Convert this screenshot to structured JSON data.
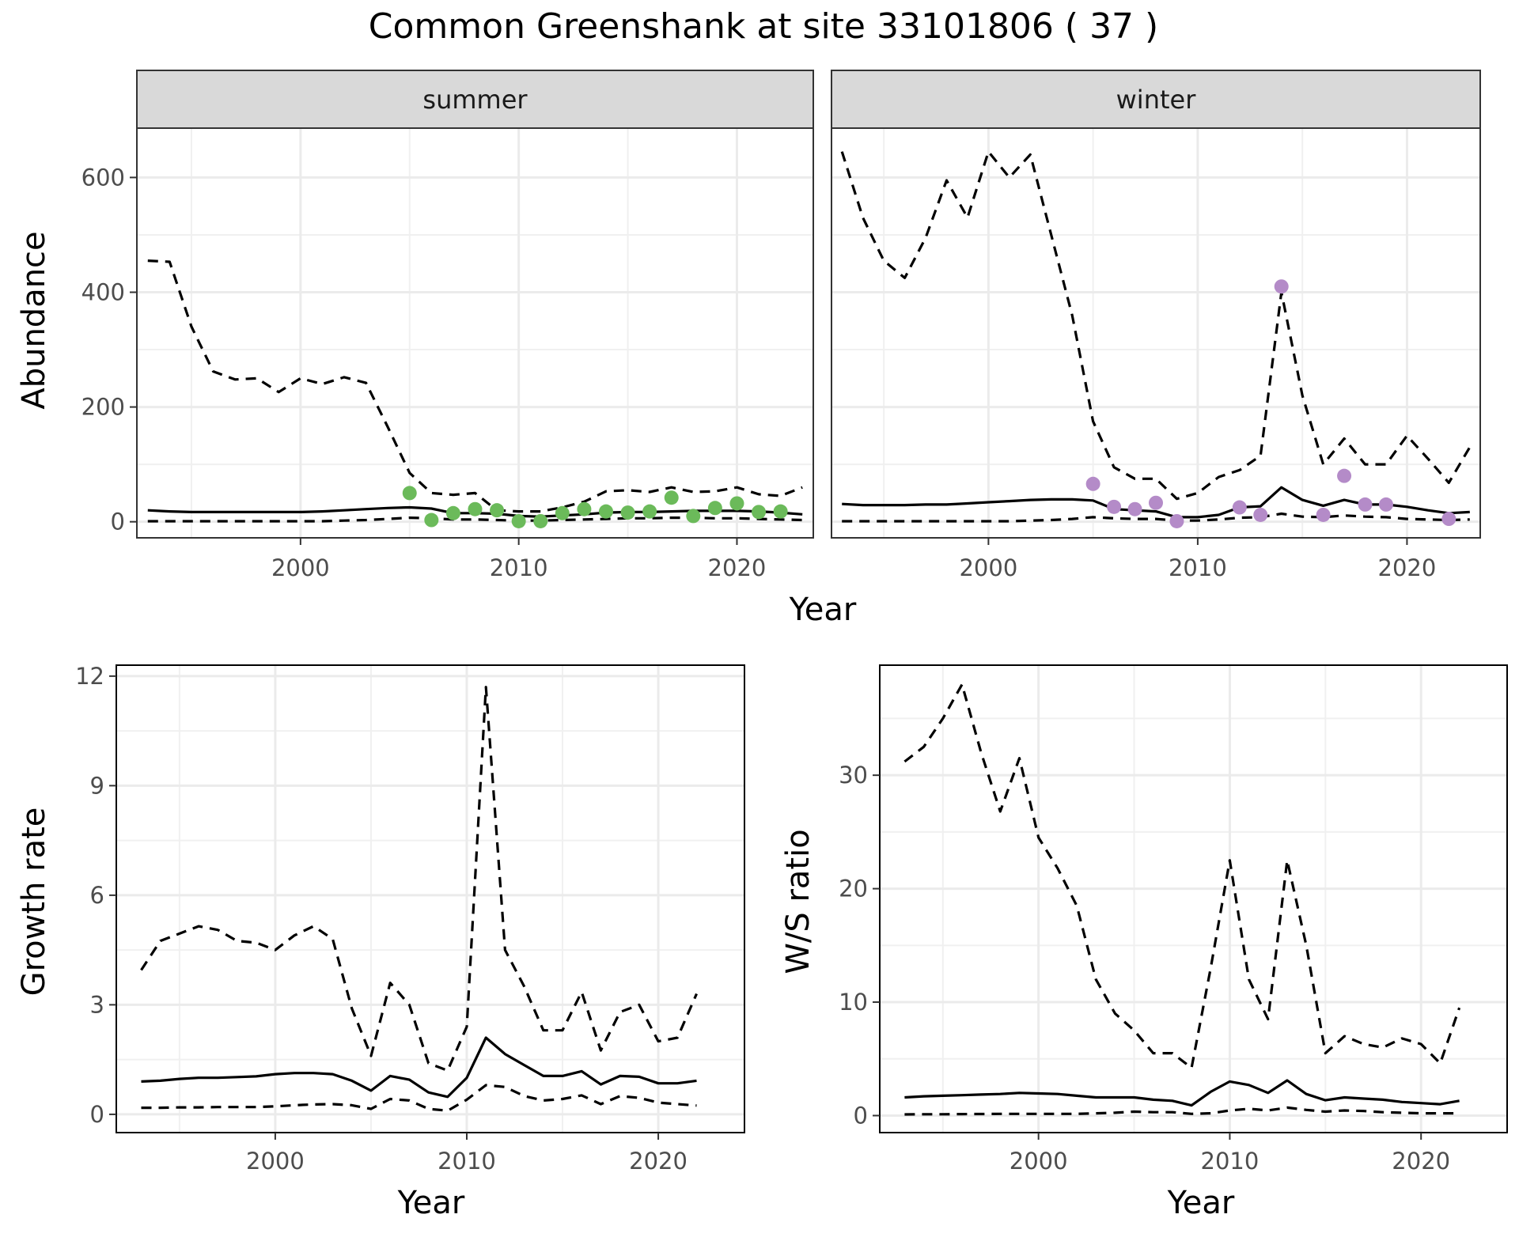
{
  "title": "Common Greenshank at site 33101806 ( 37 )",
  "colors": {
    "summer_points": "#6BBA5A",
    "winter_points": "#B48BC8",
    "lines": "#000000"
  },
  "chart_data": [
    {
      "type": "line",
      "panel": "summer",
      "strip": "summer",
      "xlabel": "Year",
      "ylabel": "Abundance",
      "xlim": [
        1992.5,
        2023.5
      ],
      "ylim": [
        -28,
        686
      ],
      "xticks": [
        2000,
        2010,
        2020
      ],
      "yticks": [
        0,
        200,
        400,
        600
      ],
      "grid": true,
      "series": [
        {
          "style": "solid",
          "x": [
            1993,
            1994,
            1995,
            1996,
            1997,
            1998,
            1999,
            2000,
            2001,
            2002,
            2003,
            2004,
            2005,
            2006,
            2007,
            2008,
            2009,
            2010,
            2011,
            2012,
            2013,
            2014,
            2015,
            2016,
            2017,
            2018,
            2019,
            2020,
            2021,
            2022,
            2023
          ],
          "y": [
            20,
            18,
            17,
            17,
            17,
            17,
            17,
            17,
            18,
            20,
            22,
            24,
            25,
            23,
            15,
            15,
            14,
            10,
            9,
            11,
            13,
            16,
            17,
            17,
            18,
            19,
            19,
            19,
            18,
            16,
            13
          ]
        },
        {
          "style": "dashed",
          "x": [
            1993,
            1994,
            1995,
            1996,
            1997,
            1998,
            1999,
            2000,
            2001,
            2002,
            2003,
            2004,
            2005,
            2006,
            2007,
            2008,
            2009,
            2010,
            2011,
            2012,
            2013,
            2014,
            2015,
            2016,
            2017,
            2018,
            2019,
            2020,
            2021,
            2022,
            2023
          ],
          "y": [
            455,
            453,
            340,
            262,
            248,
            250,
            226,
            250,
            240,
            252,
            242,
            165,
            85,
            50,
            47,
            50,
            20,
            18,
            18,
            25,
            35,
            53,
            55,
            52,
            60,
            52,
            53,
            60,
            48,
            45,
            60
          ]
        },
        {
          "style": "dashed",
          "x": [
            1993,
            1994,
            1995,
            1996,
            1997,
            1998,
            1999,
            2000,
            2001,
            2002,
            2003,
            2004,
            2005,
            2006,
            2007,
            2008,
            2009,
            2010,
            2011,
            2012,
            2013,
            2014,
            2015,
            2016,
            2017,
            2018,
            2019,
            2020,
            2021,
            2022,
            2023
          ],
          "y": [
            1,
            1,
            1,
            1,
            1,
            1,
            1,
            1,
            1,
            2,
            3,
            5,
            7,
            6,
            4,
            4,
            3,
            2,
            2,
            3,
            4,
            5,
            6,
            6,
            7,
            7,
            6,
            6,
            5,
            4,
            3
          ]
        },
        {
          "style": "points",
          "color": "summer",
          "x": [
            2005,
            2006,
            2007,
            2008,
            2009,
            2010,
            2011,
            2012,
            2013,
            2014,
            2015,
            2016,
            2017,
            2018,
            2019,
            2020,
            2021,
            2022
          ],
          "y": [
            50,
            3,
            15,
            22,
            20,
            1,
            1,
            15,
            22,
            18,
            16,
            18,
            42,
            10,
            24,
            32,
            17,
            18
          ]
        }
      ]
    },
    {
      "type": "line",
      "panel": "winter",
      "strip": "winter",
      "xlabel": "Year",
      "ylabel": "",
      "xlim": [
        1992.5,
        2023.5
      ],
      "ylim": [
        -28,
        686
      ],
      "xticks": [
        2000,
        2010,
        2020
      ],
      "yticks": [
        0,
        200,
        400,
        600
      ],
      "grid": true,
      "series": [
        {
          "style": "solid",
          "x": [
            1993,
            1994,
            1995,
            1996,
            1997,
            1998,
            1999,
            2000,
            2001,
            2002,
            2003,
            2004,
            2005,
            2006,
            2007,
            2008,
            2009,
            2010,
            2011,
            2012,
            2013,
            2014,
            2015,
            2016,
            2017,
            2018,
            2019,
            2020,
            2021,
            2022,
            2023
          ],
          "y": [
            31,
            29,
            29,
            29,
            30,
            30,
            32,
            34,
            36,
            38,
            39,
            39,
            37,
            22,
            20,
            18,
            8,
            8,
            12,
            25,
            27,
            60,
            38,
            28,
            38,
            30,
            30,
            26,
            20,
            15,
            17
          ]
        },
        {
          "style": "dashed",
          "x": [
            1993,
            1994,
            1995,
            1996,
            1997,
            1998,
            1999,
            2000,
            2001,
            2002,
            2003,
            2004,
            2005,
            2006,
            2007,
            2008,
            2009,
            2010,
            2011,
            2012,
            2013,
            2014,
            2015,
            2016,
            2017,
            2018,
            2019,
            2020,
            2021,
            2022,
            2023
          ],
          "y": [
            645,
            530,
            455,
            425,
            495,
            595,
            530,
            645,
            600,
            640,
            500,
            360,
            175,
            95,
            75,
            75,
            40,
            50,
            78,
            90,
            115,
            400,
            220,
            100,
            145,
            100,
            100,
            150,
            110,
            68,
            130
          ]
        },
        {
          "style": "dashed",
          "x": [
            1993,
            1994,
            1995,
            1996,
            1997,
            1998,
            1999,
            2000,
            2001,
            2002,
            2003,
            2004,
            2005,
            2006,
            2007,
            2008,
            2009,
            2010,
            2011,
            2012,
            2013,
            2014,
            2015,
            2016,
            2017,
            2018,
            2019,
            2020,
            2021,
            2022,
            2023
          ],
          "y": [
            1,
            1,
            1,
            1,
            1,
            1,
            1,
            1,
            1,
            2,
            3,
            5,
            8,
            6,
            5,
            5,
            2,
            2,
            4,
            7,
            8,
            14,
            9,
            8,
            11,
            9,
            8,
            5,
            4,
            3,
            4
          ]
        },
        {
          "style": "points",
          "color": "winter",
          "x": [
            2005,
            2006,
            2007,
            2008,
            2009,
            2012,
            2013,
            2014,
            2016,
            2017,
            2018,
            2019,
            2022
          ],
          "y": [
            66,
            26,
            22,
            33,
            1,
            25,
            12,
            410,
            12,
            80,
            30,
            30,
            5
          ]
        }
      ]
    },
    {
      "type": "line",
      "panel": "growth",
      "xlabel": "Year",
      "ylabel": "Growth rate",
      "xlim": [
        1991.7,
        2024.5
      ],
      "ylim": [
        -0.5,
        12.3
      ],
      "xticks": [
        2000,
        2010,
        2020
      ],
      "yticks": [
        0,
        3,
        6,
        9,
        12
      ],
      "grid": true,
      "series": [
        {
          "style": "solid",
          "x": [
            1993,
            1994,
            1995,
            1996,
            1997,
            1998,
            1999,
            2000,
            2001,
            2002,
            2003,
            2004,
            2005,
            2006,
            2007,
            2008,
            2009,
            2010,
            2011,
            2012,
            2013,
            2014,
            2015,
            2016,
            2017,
            2018,
            2019,
            2020,
            2021,
            2022
          ],
          "y": [
            0.9,
            0.92,
            0.97,
            1.0,
            1.0,
            1.02,
            1.04,
            1.1,
            1.13,
            1.13,
            1.1,
            0.92,
            0.65,
            1.05,
            0.95,
            0.6,
            0.48,
            1.0,
            2.1,
            1.65,
            1.35,
            1.05,
            1.05,
            1.18,
            0.82,
            1.05,
            1.03,
            0.85,
            0.85,
            0.92
          ]
        },
        {
          "style": "dashed",
          "x": [
            1993,
            1994,
            1995,
            1996,
            1997,
            1998,
            1999,
            2000,
            2001,
            2002,
            2003,
            2004,
            2005,
            2006,
            2007,
            2008,
            2009,
            2010,
            2011,
            2012,
            2013,
            2014,
            2015,
            2016,
            2017,
            2018,
            2019,
            2020,
            2021,
            2022
          ],
          "y": [
            3.95,
            4.75,
            4.95,
            5.15,
            5.05,
            4.75,
            4.7,
            4.5,
            4.9,
            5.15,
            4.8,
            2.9,
            1.6,
            3.6,
            3.0,
            1.4,
            1.2,
            2.4,
            11.7,
            4.5,
            3.5,
            2.3,
            2.3,
            3.35,
            1.75,
            2.8,
            3.0,
            2.0,
            2.1,
            3.3
          ]
        },
        {
          "style": "dashed",
          "x": [
            1993,
            1994,
            1995,
            1996,
            1997,
            1998,
            1999,
            2000,
            2001,
            2002,
            2003,
            2004,
            2005,
            2006,
            2007,
            2008,
            2009,
            2010,
            2011,
            2012,
            2013,
            2014,
            2015,
            2016,
            2017,
            2018,
            2019,
            2020,
            2021,
            2022
          ],
          "y": [
            0.18,
            0.18,
            0.19,
            0.19,
            0.2,
            0.2,
            0.2,
            0.22,
            0.25,
            0.27,
            0.28,
            0.25,
            0.15,
            0.42,
            0.38,
            0.15,
            0.1,
            0.4,
            0.8,
            0.75,
            0.5,
            0.38,
            0.42,
            0.52,
            0.28,
            0.5,
            0.45,
            0.32,
            0.28,
            0.24
          ]
        }
      ]
    },
    {
      "type": "line",
      "panel": "ratio",
      "xlabel": "Year",
      "ylabel": "W/S ratio",
      "xlim": [
        1991.7,
        2024.5
      ],
      "ylim": [
        -1.5,
        39.7
      ],
      "xticks": [
        2000,
        2010,
        2020
      ],
      "yticks": [
        0,
        10,
        20,
        30
      ],
      "grid": true,
      "series": [
        {
          "style": "solid",
          "x": [
            1993,
            1994,
            1995,
            1996,
            1997,
            1998,
            1999,
            2000,
            2001,
            2002,
            2003,
            2004,
            2005,
            2006,
            2007,
            2008,
            2009,
            2010,
            2011,
            2012,
            2013,
            2014,
            2015,
            2016,
            2017,
            2018,
            2019,
            2020,
            2021,
            2022
          ],
          "y": [
            1.6,
            1.7,
            1.75,
            1.8,
            1.85,
            1.9,
            2.0,
            1.95,
            1.9,
            1.75,
            1.6,
            1.6,
            1.6,
            1.4,
            1.3,
            0.9,
            2.1,
            3.0,
            2.7,
            2.0,
            3.1,
            1.9,
            1.35,
            1.6,
            1.5,
            1.4,
            1.2,
            1.1,
            1.0,
            1.3
          ]
        },
        {
          "style": "dashed",
          "x": [
            1993,
            1994,
            1995,
            1996,
            1997,
            1998,
            1999,
            2000,
            2001,
            2002,
            2003,
            2004,
            2005,
            2006,
            2007,
            2008,
            2009,
            2010,
            2011,
            2012,
            2013,
            2014,
            2015,
            2016,
            2017,
            2018,
            2019,
            2020,
            2021,
            2022
          ],
          "y": [
            31.2,
            32.5,
            35.0,
            38.0,
            32.0,
            26.8,
            31.5,
            24.5,
            21.8,
            18.5,
            12.0,
            9.0,
            7.5,
            5.5,
            5.5,
            4.2,
            13.0,
            22.5,
            12.0,
            8.5,
            22.5,
            15.0,
            5.5,
            7.0,
            6.3,
            6.0,
            6.8,
            6.3,
            4.6,
            9.5
          ]
        },
        {
          "style": "dashed",
          "x": [
            1993,
            1994,
            1995,
            1996,
            1997,
            1998,
            1999,
            2000,
            2001,
            2002,
            2003,
            2004,
            2005,
            2006,
            2007,
            2008,
            2009,
            2010,
            2011,
            2012,
            2013,
            2014,
            2015,
            2016,
            2017,
            2018,
            2019,
            2020,
            2021,
            2022
          ],
          "y": [
            0.1,
            0.12,
            0.12,
            0.13,
            0.14,
            0.15,
            0.15,
            0.15,
            0.15,
            0.15,
            0.2,
            0.25,
            0.35,
            0.3,
            0.3,
            0.15,
            0.2,
            0.45,
            0.6,
            0.45,
            0.7,
            0.5,
            0.35,
            0.45,
            0.4,
            0.3,
            0.25,
            0.2,
            0.2,
            0.2
          ]
        }
      ]
    }
  ]
}
